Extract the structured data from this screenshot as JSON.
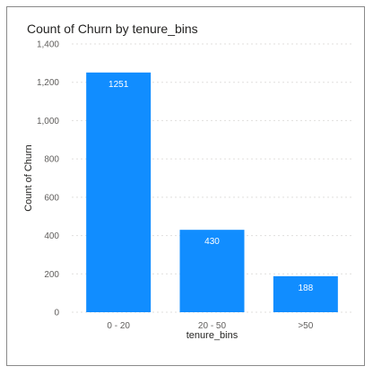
{
  "chart_data": {
    "type": "bar",
    "title": "Count of Churn by tenure_bins",
    "xlabel": "tenure_bins",
    "ylabel": "Count of Churn",
    "categories": [
      "0 - 20",
      "20 - 50",
      ">50"
    ],
    "values": [
      1251,
      430,
      188
    ],
    "data_labels": [
      "1251",
      "430",
      "188"
    ],
    "ylim": [
      0,
      1400
    ],
    "yticks": [
      0,
      200,
      400,
      600,
      800,
      1000,
      1200,
      1400
    ],
    "ytick_labels": [
      "0",
      "200",
      "400",
      "600",
      "800",
      "1,000",
      "1,200",
      "1,400"
    ],
    "grid": true,
    "bar_color": "#118DFF",
    "grid_color": "#e1dfdd"
  }
}
